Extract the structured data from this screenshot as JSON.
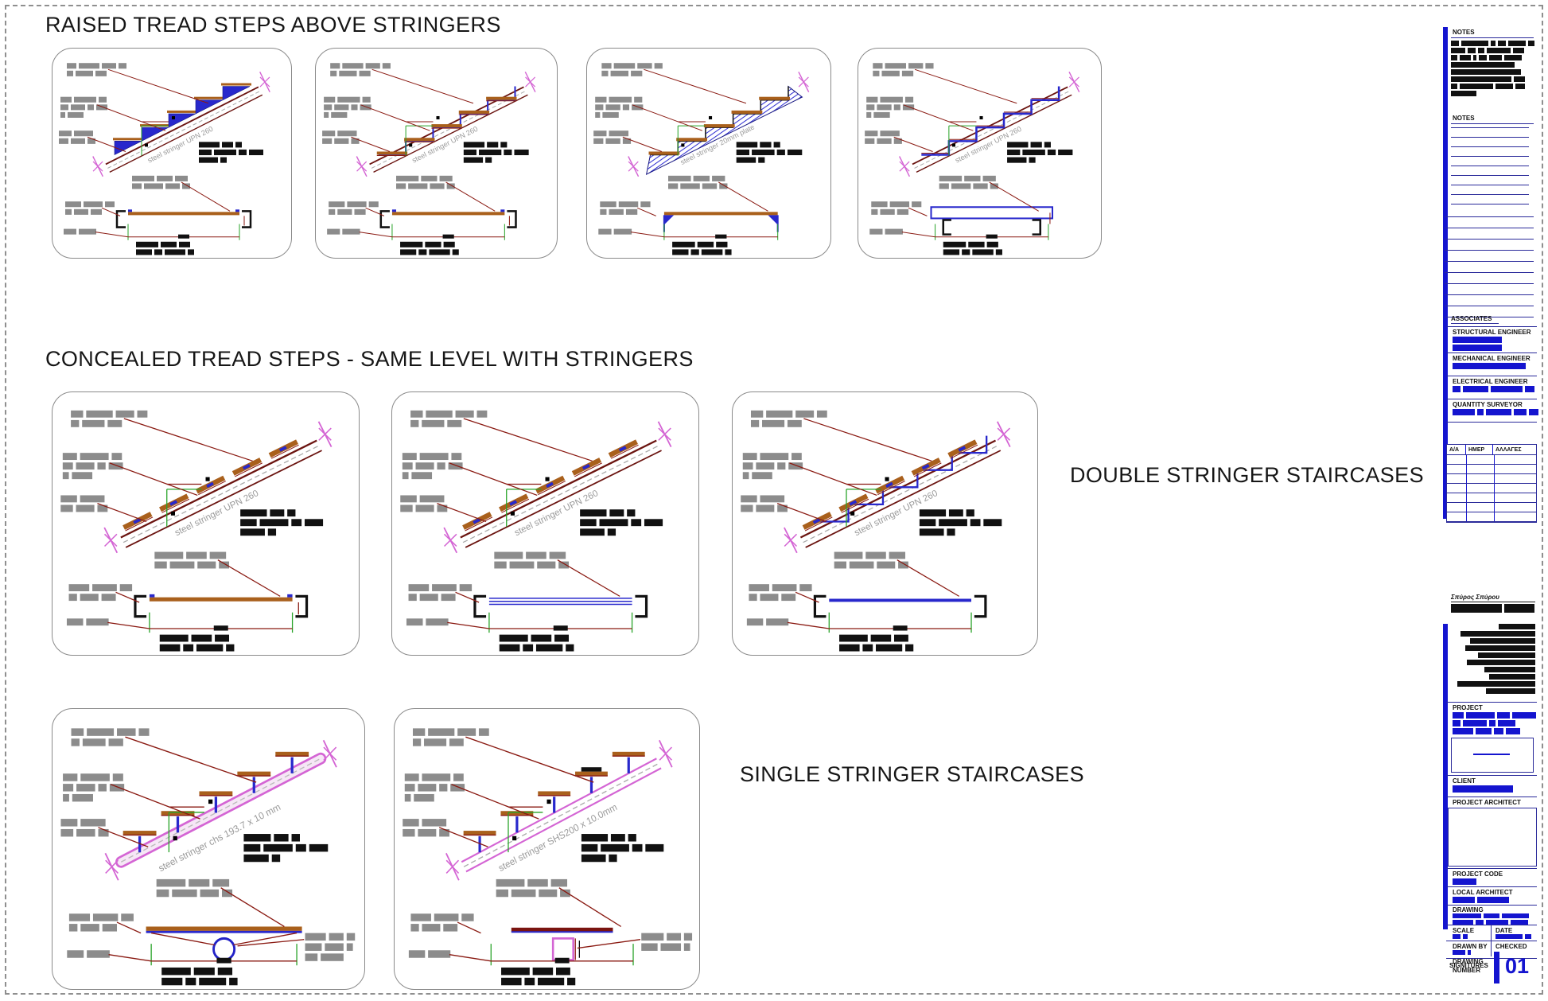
{
  "colors": {
    "accent_blue": "#1414cf",
    "navy_rule": "#2a2a9a",
    "stair_blue": "#2828cc",
    "dark_red": "#8a1a12",
    "stringer_red": "#6b1410",
    "magenta": "#d465d4",
    "green": "#27a327",
    "brown": "#a9601c",
    "grey_redact": "#8c8c8c",
    "black_redact": "#111111",
    "grey_label": "#9a9a9a"
  },
  "headings": {
    "row1": "RAISED TREAD STEPS ABOVE STRINGERS",
    "row2": "CONCEALED TREAD STEPS - SAME LEVEL WITH STRINGERS",
    "double": "DOUBLE STRINGER STAIRCASES",
    "single": "SINGLE STRINGER STAIRCASES"
  },
  "panels": [
    {
      "id": "r1p1",
      "variant": "blue-tri",
      "lower": "channel",
      "label": "steel stringer UPN 260"
    },
    {
      "id": "r1p2",
      "variant": "outline-brown",
      "lower": "channel",
      "label": "steel stringer UPN 260"
    },
    {
      "id": "r1p3",
      "variant": "plate-hatch",
      "lower": "channel-blue",
      "label": "steel stringer 20mm plate"
    },
    {
      "id": "r1p4",
      "variant": "outline-blue",
      "lower": "bluebar",
      "label": "steel stringer UPN 260"
    },
    {
      "id": "r2p1",
      "variant": "concealed-brown",
      "lower": "channel",
      "label": "steel stringer UPN 260"
    },
    {
      "id": "r2p2",
      "variant": "concealed-brown",
      "lower": "bluelines",
      "label": "steel stringer UPN 260"
    },
    {
      "id": "r2p3",
      "variant": "concealed-blue",
      "lower": "blueline",
      "label": "steel stringer UPN 260"
    },
    {
      "id": "r3p1",
      "variant": "chs",
      "lower": "circle",
      "label": "steel stringer chs  193.7 x 10 mm"
    },
    {
      "id": "r3p2",
      "variant": "shs",
      "lower": "square",
      "label": "steel stringer  SHS200 x 10.0mm"
    }
  ],
  "titleblock": {
    "notes1_label": "NOTES",
    "notes2_label": "NOTES",
    "associates_label": "ASSOCIATES",
    "structural_label": "STRUCTURAL ENGINEER",
    "mechanical_label": "MECHANICAL ENGINEER",
    "electrical_label": "ELECTRICAL ENGINEER",
    "quantity_label": "QUANTITY SURVEYOR",
    "rev_cols": [
      "Α/Α",
      "ΗΜΕΡ",
      "ΑΛΛΑΓΕΣ"
    ],
    "rev_row_count": 7,
    "architect_name": "Σπύρος Σπύρου",
    "project_label": "PROJECT",
    "client_label": "CLIENT",
    "project_architect_label": "PROJECT ARCHITECT",
    "project_code_label": "PROJECT CODE",
    "local_architect_label": "LOCAL ARCHITECT",
    "drawing_label": "DRAWING",
    "scale_label": "SCALE",
    "date_label": "DATE",
    "drawn_by_label": "DRAWN BY",
    "checked_label": "CHECKED",
    "signatures_label": "SIGNITURES",
    "drawing_number_label": "DRAWING NUMBER",
    "drawing_number": "01"
  }
}
